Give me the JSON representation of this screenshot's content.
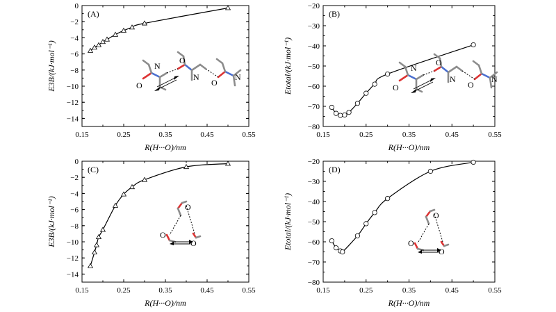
{
  "chart_data": [
    {
      "type": "line",
      "panel_label": "(A)",
      "xlabel": "R(H···O)/nm",
      "ylabel": "E3B/(kJ·mol⁻¹)",
      "xlim": [
        0.15,
        0.55
      ],
      "ylim": [
        -15,
        0
      ],
      "xticks": [
        "0.15",
        "0.25",
        "0.35",
        "0.45",
        "0.55"
      ],
      "yticks": [
        "0",
        "−2",
        "−4",
        "−6",
        "−8",
        "−10",
        "−12",
        "−14"
      ],
      "marker": "triangle",
      "series": [
        {
          "x": [
            0.17,
            0.18,
            0.19,
            0.2,
            0.21,
            0.23,
            0.25,
            0.27,
            0.3,
            0.5
          ],
          "y": [
            -5.6,
            -5.2,
            -4.9,
            -4.5,
            -4.2,
            -3.6,
            -3.1,
            -2.7,
            -2.2,
            -0.3
          ]
        }
      ],
      "inset": {
        "kind": "dimer-chain",
        "labels": [
          "N",
          "O",
          "O",
          "N",
          "O",
          "N"
        ]
      }
    },
    {
      "type": "line",
      "panel_label": "(B)",
      "xlabel": "R(H···O)/nm",
      "ylabel": "Etotal/(kJ·mol⁻¹)",
      "xlim": [
        0.15,
        0.55
      ],
      "ylim": [
        -80,
        -20
      ],
      "xticks": [
        "0.15",
        "0.25",
        "0.35",
        "0.45",
        "0.55"
      ],
      "yticks": [
        "−20",
        "−30",
        "−40",
        "−50",
        "−60",
        "−70",
        "−80"
      ],
      "marker": "circle",
      "series": [
        {
          "x": [
            0.17,
            0.18,
            0.19,
            0.2,
            0.21,
            0.23,
            0.25,
            0.27,
            0.3,
            0.5
          ],
          "y": [
            -70.5,
            -73.5,
            -74.5,
            -74.3,
            -73.0,
            -68.5,
            -63.5,
            -59.0,
            -54.0,
            -39.5
          ]
        }
      ],
      "inset": {
        "kind": "dimer-chain",
        "labels": [
          "N",
          "O",
          "O",
          "N",
          "O",
          "N"
        ]
      }
    },
    {
      "type": "line",
      "panel_label": "(C)",
      "xlabel": "R(H···O)/nm",
      "ylabel": "E3B/(kJ·mol⁻¹)",
      "xlim": [
        0.15,
        0.55
      ],
      "ylim": [
        -15,
        0
      ],
      "xticks": [
        "0.15",
        "0.25",
        "0.35",
        "0.45",
        "0.55"
      ],
      "yticks": [
        "0",
        "−2",
        "−4",
        "−6",
        "−8",
        "−10",
        "−12",
        "−14"
      ],
      "marker": "triangle",
      "series": [
        {
          "x": [
            0.17,
            0.18,
            0.185,
            0.19,
            0.2,
            0.23,
            0.25,
            0.27,
            0.3,
            0.4,
            0.5
          ],
          "y": [
            -13.0,
            -11.3,
            -10.4,
            -9.4,
            -8.5,
            -5.5,
            -4.1,
            -3.2,
            -2.3,
            -0.7,
            -0.3
          ]
        }
      ],
      "inset": {
        "kind": "water-trimer",
        "labels": [
          "O",
          "O",
          "O"
        ]
      }
    },
    {
      "type": "line",
      "panel_label": "(D)",
      "xlabel": "R(H···O)/nm",
      "ylabel": "Etotal/(kJ·mol⁻¹)",
      "xlim": [
        0.15,
        0.55
      ],
      "ylim": [
        -80,
        -20
      ],
      "xticks": [
        "0.15",
        "0.25",
        "0.35",
        "0.45",
        "0.55"
      ],
      "yticks": [
        "−20",
        "−30",
        "−40",
        "−50",
        "−60",
        "−70",
        "−80"
      ],
      "marker": "circle",
      "series": [
        {
          "x": [
            0.17,
            0.18,
            0.19,
            0.195,
            0.23,
            0.25,
            0.27,
            0.3,
            0.4,
            0.5
          ],
          "y": [
            -59.5,
            -63.0,
            -64.5,
            -65.0,
            -57.0,
            -51.0,
            -45.5,
            -38.5,
            -25.0,
            -20.5
          ]
        }
      ],
      "inset": {
        "kind": "water-trimer",
        "labels": [
          "O",
          "O",
          "O"
        ]
      }
    }
  ]
}
